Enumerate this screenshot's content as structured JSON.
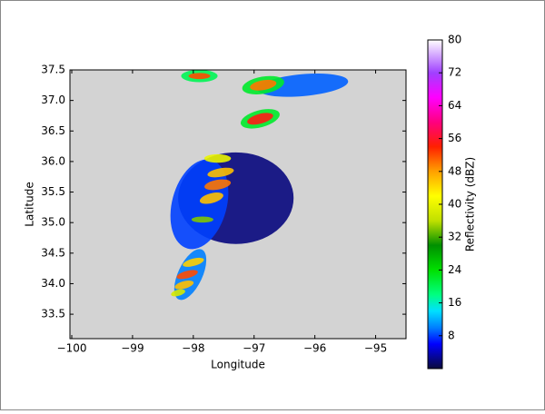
{
  "chart_data": {
    "type": "radar-map",
    "xlabel": "Longitude",
    "ylabel": "Latitude",
    "xlim": [
      -100.03,
      -94.5
    ],
    "ylim": [
      33.1,
      37.5
    ],
    "xticks": [
      {
        "value": -100,
        "label": "−100"
      },
      {
        "value": -99,
        "label": "−99"
      },
      {
        "value": -98,
        "label": "−98"
      },
      {
        "value": -97,
        "label": "−97"
      },
      {
        "value": -96,
        "label": "−96"
      },
      {
        "value": -95,
        "label": "−95"
      }
    ],
    "yticks": [
      33.5,
      {
        "value": 34,
        "label": "34.0"
      },
      34.5,
      {
        "value": 35,
        "label": "35.0"
      },
      35.5,
      {
        "value": 36,
        "label": "36.0"
      },
      36.5,
      {
        "value": 37,
        "label": "37.0"
      },
      37.5
    ],
    "background": "#d3d3d3",
    "cells": [
      {
        "lon": -97.3,
        "lat": 35.4,
        "rx": 0.95,
        "ry": 0.75,
        "angle": 0,
        "dbz": 2
      },
      {
        "lon": -97.9,
        "lat": 35.3,
        "rx": 0.45,
        "ry": 0.75,
        "angle": 15,
        "dbz": 8
      },
      {
        "lon": -96.2,
        "lat": 37.25,
        "rx": 0.75,
        "ry": 0.18,
        "angle": -5,
        "dbz": 9
      },
      {
        "lon": -98.05,
        "lat": 34.15,
        "rx": 0.2,
        "ry": 0.45,
        "angle": 25,
        "dbz": 10
      },
      {
        "lon": -97.9,
        "lat": 37.4,
        "rx": 0.3,
        "ry": 0.1,
        "angle": 0,
        "dbz": 20
      },
      {
        "lon": -96.85,
        "lat": 37.25,
        "rx": 0.35,
        "ry": 0.14,
        "angle": -10,
        "dbz": 22
      },
      {
        "lon": -96.9,
        "lat": 36.7,
        "rx": 0.33,
        "ry": 0.14,
        "angle": -15,
        "dbz": 22
      },
      {
        "lon": -97.9,
        "lat": 37.4,
        "rx": 0.18,
        "ry": 0.05,
        "angle": 0,
        "dbz": 52
      },
      {
        "lon": -96.85,
        "lat": 37.25,
        "rx": 0.22,
        "ry": 0.08,
        "angle": -10,
        "dbz": 50
      },
      {
        "lon": -96.9,
        "lat": 36.7,
        "rx": 0.22,
        "ry": 0.08,
        "angle": -15,
        "dbz": 55
      },
      {
        "lon": -97.6,
        "lat": 36.05,
        "rx": 0.22,
        "ry": 0.07,
        "angle": 0,
        "dbz": 40
      },
      {
        "lon": -97.55,
        "lat": 35.82,
        "rx": 0.22,
        "ry": 0.07,
        "angle": -10,
        "dbz": 46
      },
      {
        "lon": -97.6,
        "lat": 35.62,
        "rx": 0.22,
        "ry": 0.08,
        "angle": -10,
        "dbz": 50
      },
      {
        "lon": -97.7,
        "lat": 35.4,
        "rx": 0.2,
        "ry": 0.08,
        "angle": -15,
        "dbz": 46
      },
      {
        "lon": -97.85,
        "lat": 35.05,
        "rx": 0.18,
        "ry": 0.05,
        "angle": 0,
        "dbz": 34
      },
      {
        "lon": -98.0,
        "lat": 34.35,
        "rx": 0.18,
        "ry": 0.06,
        "angle": -15,
        "dbz": 45
      },
      {
        "lon": -98.1,
        "lat": 34.15,
        "rx": 0.18,
        "ry": 0.06,
        "angle": -15,
        "dbz": 52
      },
      {
        "lon": -98.15,
        "lat": 33.98,
        "rx": 0.16,
        "ry": 0.06,
        "angle": -15,
        "dbz": 46
      },
      {
        "lon": -98.25,
        "lat": 33.85,
        "rx": 0.12,
        "ry": 0.05,
        "angle": -15,
        "dbz": 38
      }
    ],
    "colorbar": {
      "label": "Reflectivity (dBZ)",
      "lim": [
        0,
        80
      ],
      "ticks": [
        8,
        16,
        24,
        32,
        40,
        48,
        56,
        64,
        72,
        80
      ],
      "stops": [
        {
          "value": 0,
          "color": "#0a0a3c"
        },
        {
          "value": 6,
          "color": "#0000ff"
        },
        {
          "value": 10,
          "color": "#0080ff"
        },
        {
          "value": 14,
          "color": "#00e0ff"
        },
        {
          "value": 18,
          "color": "#00ff80"
        },
        {
          "value": 24,
          "color": "#00e000"
        },
        {
          "value": 30,
          "color": "#009000"
        },
        {
          "value": 36,
          "color": "#c0e000"
        },
        {
          "value": 42,
          "color": "#ffff00"
        },
        {
          "value": 48,
          "color": "#ffa000"
        },
        {
          "value": 54,
          "color": "#ff2000"
        },
        {
          "value": 60,
          "color": "#ff0080"
        },
        {
          "value": 66,
          "color": "#ff00ff"
        },
        {
          "value": 72,
          "color": "#a040ff"
        },
        {
          "value": 80,
          "color": "#ffffff"
        }
      ]
    }
  }
}
